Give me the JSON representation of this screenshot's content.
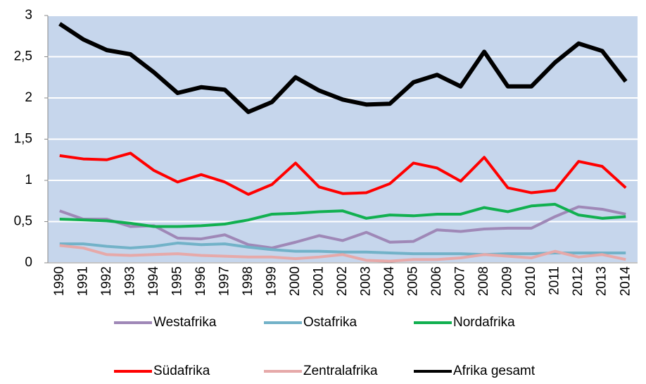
{
  "chart_data": {
    "type": "line",
    "categories": [
      "1990",
      "1991",
      "1992",
      "1993",
      "1994",
      "1995",
      "1996",
      "1997",
      "1998",
      "1999",
      "2000",
      "2001",
      "2002",
      "2003",
      "2004",
      "2005",
      "2006",
      "2007",
      "2008",
      "2009",
      "2010",
      "2011",
      "2012",
      "2013",
      "2014"
    ],
    "series": [
      {
        "name": "Westafrika",
        "color": "#9f88b7",
        "values": [
          0.63,
          0.53,
          0.53,
          0.44,
          0.45,
          0.3,
          0.29,
          0.34,
          0.22,
          0.18,
          0.25,
          0.33,
          0.27,
          0.37,
          0.25,
          0.26,
          0.4,
          0.38,
          0.41,
          0.42,
          0.42,
          0.56,
          0.68,
          0.65,
          0.59
        ]
      },
      {
        "name": "Ostafrika",
        "color": "#72b2c8",
        "values": [
          0.23,
          0.23,
          0.2,
          0.18,
          0.2,
          0.24,
          0.22,
          0.23,
          0.19,
          0.16,
          0.14,
          0.14,
          0.13,
          0.13,
          0.12,
          0.11,
          0.11,
          0.11,
          0.1,
          0.11,
          0.11,
          0.12,
          0.12,
          0.12,
          0.12
        ]
      },
      {
        "name": "Nordafrika",
        "color": "#11b050",
        "values": [
          0.53,
          0.52,
          0.51,
          0.48,
          0.44,
          0.44,
          0.45,
          0.47,
          0.52,
          0.59,
          0.6,
          0.62,
          0.63,
          0.54,
          0.58,
          0.57,
          0.59,
          0.59,
          0.67,
          0.62,
          0.69,
          0.71,
          0.58,
          0.54,
          0.56
        ]
      },
      {
        "name": "Südafrika",
        "color": "#ff0000",
        "values": [
          1.3,
          1.26,
          1.25,
          1.33,
          1.12,
          0.98,
          1.07,
          0.98,
          0.83,
          0.95,
          1.21,
          0.92,
          0.84,
          0.85,
          0.96,
          1.21,
          1.15,
          0.99,
          1.28,
          0.91,
          0.85,
          0.88,
          1.23,
          1.17,
          0.91
        ]
      },
      {
        "name": "Zentralafrika",
        "color": "#e6a9a9",
        "values": [
          0.21,
          0.18,
          0.1,
          0.09,
          0.1,
          0.11,
          0.09,
          0.08,
          0.07,
          0.07,
          0.05,
          0.07,
          0.1,
          0.03,
          0.02,
          0.04,
          0.04,
          0.06,
          0.1,
          0.08,
          0.06,
          0.14,
          0.07,
          0.1,
          0.04
        ]
      },
      {
        "name": "Afrika gesamt",
        "color": "#000000",
        "values": [
          2.9,
          2.71,
          2.58,
          2.53,
          2.31,
          2.06,
          2.13,
          2.1,
          1.83,
          1.95,
          2.25,
          2.09,
          1.98,
          1.92,
          1.93,
          2.19,
          2.28,
          2.14,
          2.56,
          2.14,
          2.14,
          2.43,
          2.66,
          2.57,
          2.2
        ]
      }
    ],
    "ylim": [
      0,
      3
    ],
    "yticks": [
      0,
      {
        "value": 0.5,
        "label": "0,5"
      },
      1,
      {
        "value": 1.5,
        "label": "1,5"
      },
      2,
      {
        "value": 2.5,
        "label": "2,5"
      },
      3
    ],
    "grid": true
  }
}
